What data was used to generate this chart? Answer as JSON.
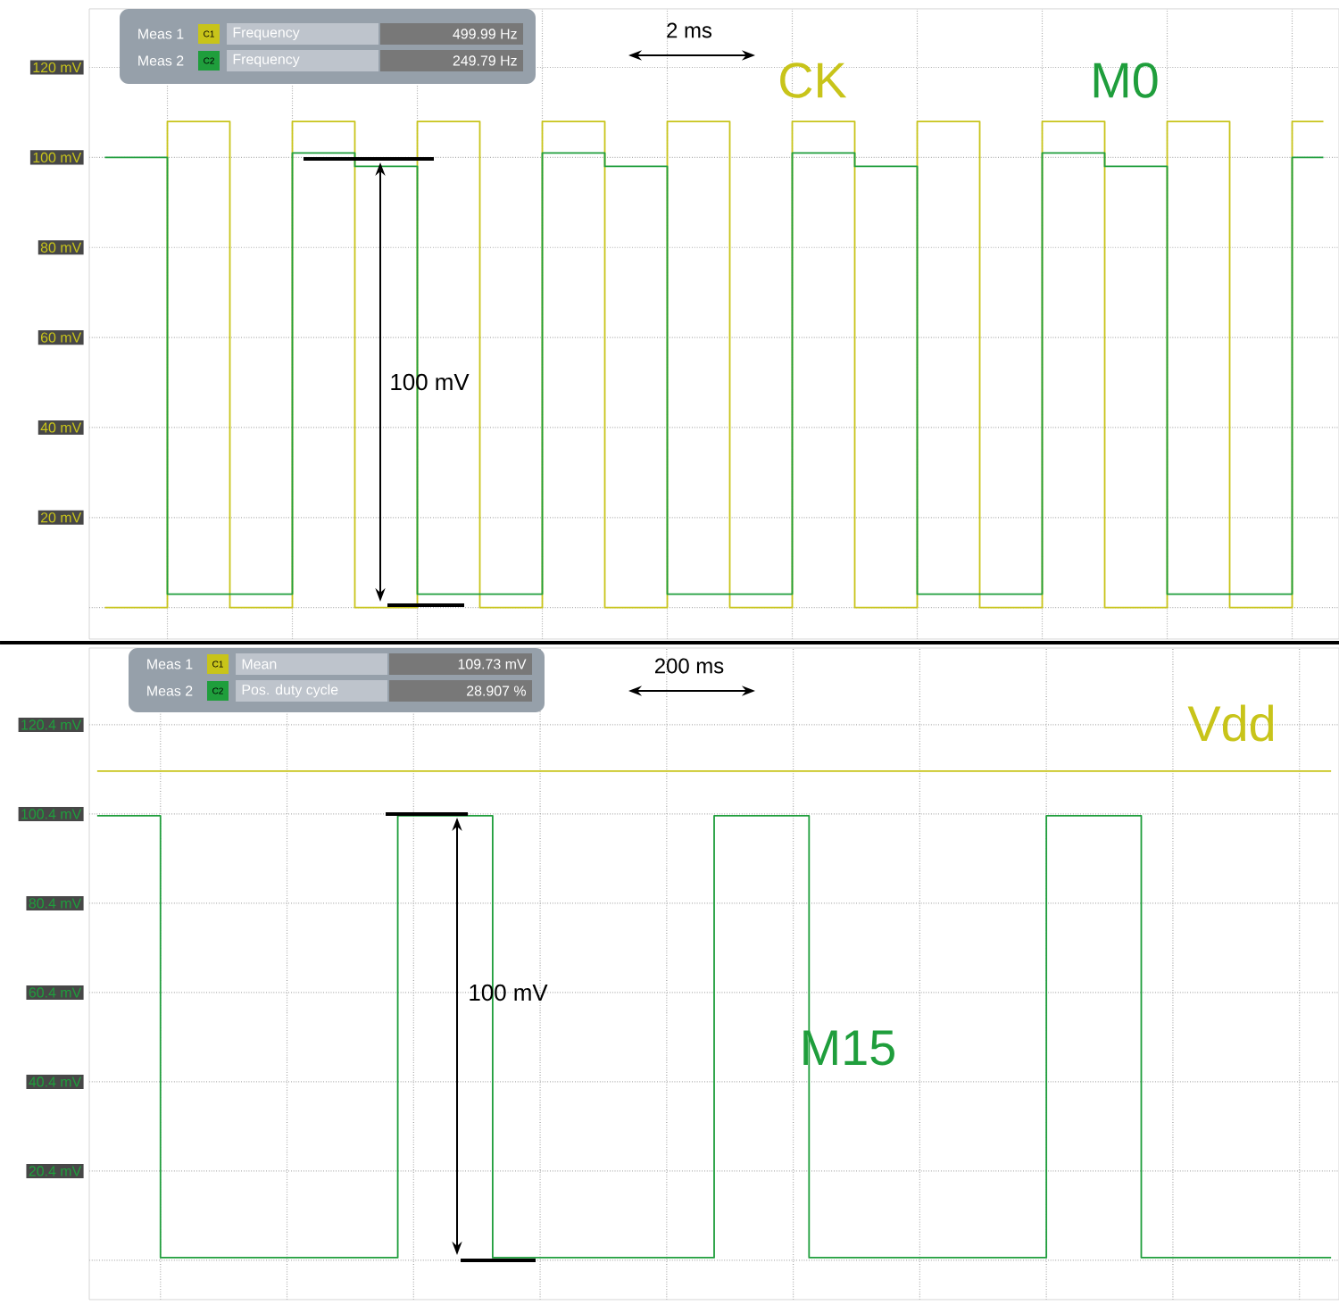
{
  "chart_data": [
    {
      "type": "step",
      "categories": [
        null,
        null,
        null,
        null,
        null,
        null,
        null,
        null,
        null,
        null,
        null,
        null,
        null,
        null,
        null,
        null,
        null,
        null,
        null,
        null,
        null,
        null,
        null,
        null,
        null,
        null,
        null,
        null,
        null,
        null,
        null,
        null,
        null,
        null,
        null,
        null,
        null,
        null,
        null,
        null
      ],
      "series": [
        {
          "name": "CK",
          "color": "#c8c41a",
          "values": [
            0,
            0,
            108,
            108,
            0,
            0,
            108,
            108,
            0,
            0,
            108,
            108,
            0,
            0,
            108,
            108,
            0,
            0,
            108,
            108,
            0,
            0,
            108,
            108,
            0,
            0,
            108,
            108,
            0,
            0,
            108,
            108,
            0,
            0,
            108,
            108,
            0,
            0,
            108,
            108
          ]
        },
        {
          "name": "M0",
          "color": "#1f9e3c",
          "values": [
            100,
            100,
            3,
            3,
            3,
            3,
            101,
            101,
            98,
            98,
            3,
            3,
            3,
            3,
            101,
            101,
            98,
            98,
            3,
            3,
            3,
            3,
            101,
            101,
            98,
            98,
            3,
            3,
            3,
            3,
            101,
            101,
            98,
            98,
            3,
            3,
            3,
            3,
            100,
            100
          ]
        }
      ],
      "ylim": [
        -7,
        133
      ],
      "yticks": [
        {
          "value": 0,
          "label": null
        },
        {
          "value": 20,
          "label": "20 mV"
        },
        {
          "value": 40,
          "label": "40 mV"
        },
        {
          "value": 60,
          "label": "60 mV"
        },
        {
          "value": 80,
          "label": "80 mV"
        },
        {
          "value": 100,
          "label": "100 mV"
        },
        {
          "value": 120,
          "label": "120 mV"
        }
      ],
      "grid": true,
      "annotations": [
        "Meas 1",
        "C1",
        "Frequency",
        "499.99 Hz",
        "Meas 2",
        "C2",
        "Frequency",
        "249.79 Hz",
        "2 ms",
        "100 mV"
      ]
    },
    {
      "type": "step",
      "categories": [
        null,
        null,
        null,
        null,
        null,
        null,
        null,
        null,
        null,
        null,
        null,
        null,
        null,
        null,
        null,
        null,
        null,
        null,
        null,
        null,
        null,
        null,
        null,
        null,
        null,
        null,
        null,
        null,
        null,
        null,
        null,
        null,
        null,
        null,
        null,
        null,
        null,
        null,
        null,
        null,
        null,
        null,
        null,
        null,
        null,
        null,
        null,
        null,
        null,
        null,
        null,
        null,
        null,
        null,
        null,
        null,
        null,
        null,
        null,
        null,
        null,
        null,
        null,
        null,
        null,
        null,
        null,
        null,
        null,
        null,
        null,
        null,
        null,
        null,
        null,
        null,
        null,
        null,
        null
      ],
      "series": [
        {
          "name": "Vdd",
          "color": "#c8c41a",
          "values": [
            110,
            110,
            110,
            110,
            110,
            110,
            110,
            110,
            110,
            110,
            110,
            110,
            110,
            110,
            110,
            110,
            110,
            110,
            110,
            110,
            110,
            110,
            110,
            110,
            110,
            110,
            110,
            110,
            110,
            110,
            110,
            110,
            110,
            110,
            110,
            110,
            110,
            110,
            110,
            110,
            110,
            110,
            110,
            110,
            110,
            110,
            110,
            110,
            110,
            110,
            110,
            110,
            110,
            110,
            110,
            110,
            110,
            110,
            110,
            110,
            110,
            110,
            110,
            110,
            110,
            110,
            110,
            110,
            110,
            110,
            110,
            110,
            110,
            110,
            110,
            110,
            110,
            110,
            110
          ]
        },
        {
          "name": "M15",
          "color": "#1f9e3c",
          "values": [
            100,
            100,
            100,
            100,
            1,
            1,
            1,
            1,
            1,
            1,
            1,
            1,
            1,
            1,
            1,
            1,
            1,
            1,
            1,
            100,
            100,
            100,
            100,
            100,
            100,
            1,
            1,
            1,
            1,
            1,
            1,
            1,
            1,
            1,
            1,
            1,
            1,
            1,
            1,
            100,
            100,
            100,
            100,
            100,
            100,
            1,
            1,
            1,
            1,
            1,
            1,
            1,
            1,
            1,
            1,
            1,
            1,
            1,
            1,
            1,
            100,
            100,
            100,
            100,
            100,
            100,
            1,
            1,
            1,
            1,
            1,
            1,
            1,
            1,
            1,
            1,
            1,
            1,
            1
          ]
        }
      ],
      "ylim": [
        -8.4,
        137.6
      ],
      "yticks": [
        {
          "value": 0.4,
          "label": null
        },
        {
          "value": 20.4,
          "label": "20.4 mV"
        },
        {
          "value": 40.4,
          "label": "40.4 mV"
        },
        {
          "value": 60.4,
          "label": "60.4 mV"
        },
        {
          "value": 80.4,
          "label": "80.4 mV"
        },
        {
          "value": 100.4,
          "label": "100.4 mV"
        },
        {
          "value": 120.4,
          "label": "120.4 mV"
        }
      ],
      "grid": true,
      "annotations": [
        "Meas 1",
        "C1",
        "Mean",
        "109.73 mV",
        "Meas 2",
        "C2",
        "Pos. duty cycle",
        "28.907 %",
        "200 ms",
        "100 mV"
      ]
    }
  ]
}
